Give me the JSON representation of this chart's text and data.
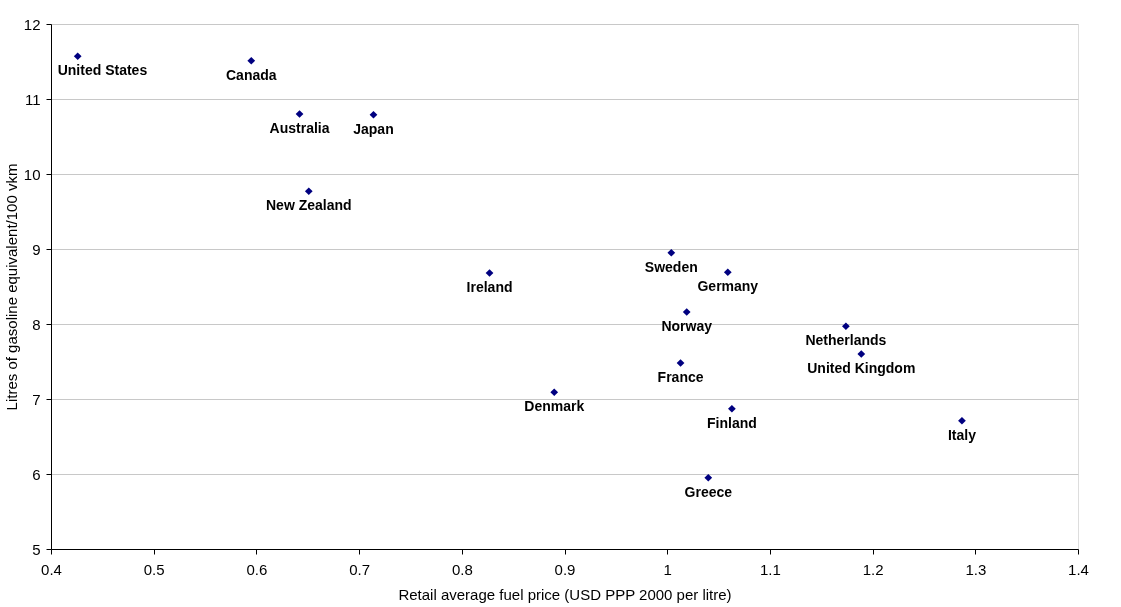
{
  "chart_data": {
    "type": "scatter",
    "xlabel": "Retail average fuel price (USD PPP 2000 per litre)",
    "ylabel": "Litres of gasoline equivalent/100 vkm",
    "series": [
      {
        "color": "#000080",
        "x": [
          0.426,
          0.595,
          0.642,
          0.714,
          0.651,
          0.827,
          1.004,
          1.059,
          1.019,
          1.174,
          1.189,
          1.013,
          0.89,
          1.063,
          1.287,
          1.04
        ],
        "values": [
          11.57,
          11.51,
          10.8,
          10.79,
          9.77,
          8.68,
          8.95,
          8.69,
          8.16,
          7.97,
          7.6,
          7.48,
          7.09,
          6.87,
          6.71,
          5.95
        ]
      }
    ],
    "annotations": [
      {
        "text": "United States",
        "x": 0.426,
        "y": 11.57
      },
      {
        "text": "Canada",
        "x": 0.595,
        "y": 11.51
      },
      {
        "text": "Australia",
        "x": 0.642,
        "y": 10.8
      },
      {
        "text": "Japan",
        "x": 0.714,
        "y": 10.79
      },
      {
        "text": "New Zealand",
        "x": 0.651,
        "y": 9.77
      },
      {
        "text": "Ireland",
        "x": 0.827,
        "y": 8.68
      },
      {
        "text": "Sweden",
        "x": 1.004,
        "y": 8.95
      },
      {
        "text": "Germany",
        "x": 1.059,
        "y": 8.69
      },
      {
        "text": "Norway",
        "x": 1.019,
        "y": 8.16
      },
      {
        "text": "Netherlands",
        "x": 1.174,
        "y": 7.97
      },
      {
        "text": "United Kingdom",
        "x": 1.189,
        "y": 7.6
      },
      {
        "text": "France",
        "x": 1.013,
        "y": 7.48
      },
      {
        "text": "Denmark",
        "x": 0.89,
        "y": 7.09
      },
      {
        "text": "Finland",
        "x": 1.063,
        "y": 6.87
      },
      {
        "text": "Italy",
        "x": 1.287,
        "y": 6.71
      },
      {
        "text": "Greece",
        "x": 1.04,
        "y": 5.95
      }
    ],
    "xlim": [
      0.4,
      1.4
    ],
    "xticks": [
      0.4,
      0.5,
      0.6,
      0.7,
      0.8,
      0.9,
      1,
      1.1,
      1.2,
      1.3,
      1.4
    ],
    "ylim": [
      5,
      12
    ],
    "yticks": [
      5,
      6,
      7,
      8,
      9,
      10,
      11,
      12
    ],
    "grid": "y",
    "marker": "diamond"
  }
}
